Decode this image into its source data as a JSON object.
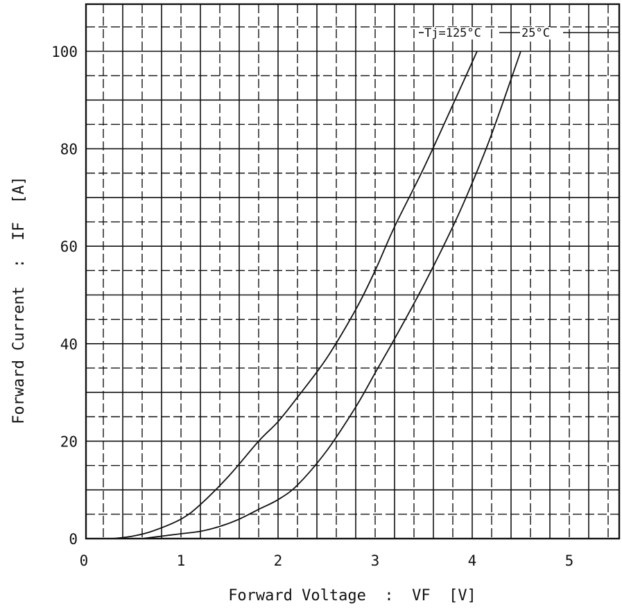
{
  "chart_data": {
    "type": "line",
    "xlabel": "Forward Voltage  :  VF  [V]",
    "ylabel": "Forward Current  :  IF  [A]",
    "xlim": [
      0,
      5.5
    ],
    "ylim": [
      0,
      110
    ],
    "x_ticks": [
      "0",
      "1",
      "2",
      "3",
      "4",
      "5"
    ],
    "y_ticks": [
      "0",
      "20",
      "40",
      "60",
      "80",
      "100"
    ],
    "grid": true,
    "annotations": [
      {
        "text": "Tj=125°C",
        "target_series": 0
      },
      {
        "text": "25°C",
        "target_series": 1
      }
    ],
    "series": [
      {
        "name": "Tj=125°C",
        "x": [
          0.3,
          0.5,
          0.7,
          1.0,
          1.2,
          1.5,
          1.8,
          2.0,
          2.2,
          2.5,
          2.8,
          3.0,
          3.2,
          3.5,
          3.8,
          4.05
        ],
        "y": [
          0,
          0.5,
          1.5,
          4,
          7,
          13,
          20,
          24,
          29,
          37,
          47,
          55,
          64,
          76,
          89,
          100
        ]
      },
      {
        "name": "25°C",
        "x": [
          0.6,
          0.8,
          1.0,
          1.2,
          1.4,
          1.6,
          1.8,
          2.0,
          2.2,
          2.5,
          2.8,
          3.0,
          3.2,
          3.5,
          3.8,
          4.0,
          4.2,
          4.5
        ],
        "y": [
          0,
          0.5,
          1,
          1.5,
          2.5,
          4,
          6,
          8,
          11,
          18,
          27,
          34,
          41,
          52,
          64,
          73,
          83,
          100
        ]
      }
    ]
  }
}
